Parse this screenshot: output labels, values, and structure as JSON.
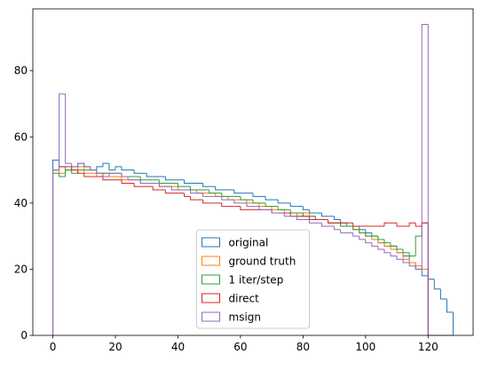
{
  "chart_data": {
    "type": "histogram",
    "histtype": "step",
    "bins": [
      0,
      2,
      4,
      6,
      8,
      10,
      12,
      14,
      16,
      18,
      20,
      22,
      24,
      26,
      28,
      30,
      32,
      34,
      36,
      38,
      40,
      42,
      44,
      46,
      48,
      50,
      52,
      54,
      56,
      58,
      60,
      62,
      64,
      66,
      68,
      70,
      72,
      74,
      76,
      78,
      80,
      82,
      84,
      86,
      88,
      90,
      92,
      94,
      96,
      98,
      100,
      102,
      104,
      106,
      108,
      110,
      112,
      114,
      116,
      118,
      120,
      122,
      124,
      126,
      128
    ],
    "series": [
      {
        "name": "original",
        "color": "#1f77b4",
        "values": [
          53,
          51,
          50,
          51,
          52,
          51,
          50,
          51,
          52,
          50,
          51,
          50,
          50,
          49,
          49,
          48,
          48,
          48,
          47,
          47,
          47,
          46,
          46,
          46,
          45,
          45,
          44,
          44,
          44,
          43,
          43,
          43,
          42,
          42,
          41,
          41,
          40,
          40,
          39,
          39,
          38,
          37,
          37,
          36,
          36,
          35,
          34,
          33,
          33,
          32,
          31,
          30,
          28,
          27,
          27,
          25,
          24,
          22,
          20,
          18,
          17,
          14,
          11,
          7
        ]
      },
      {
        "name": "ground truth",
        "color": "#ff7f0e",
        "values": [
          50,
          49,
          50,
          50,
          51,
          49,
          49,
          48,
          49,
          48,
          48,
          47,
          47,
          47,
          46,
          46,
          46,
          45,
          45,
          45,
          44,
          44,
          44,
          43,
          43,
          43,
          42,
          42,
          41,
          41,
          41,
          40,
          40,
          39,
          39,
          38,
          38,
          37,
          37,
          36,
          37,
          36,
          35,
          35,
          34,
          34,
          33,
          33,
          32,
          31,
          30,
          29,
          28,
          27,
          26,
          25,
          23,
          22,
          21,
          20,
          0,
          0,
          0,
          0
        ]
      },
      {
        "name": "1 iter/step",
        "color": "#2ca02c",
        "values": [
          49,
          48,
          50,
          49,
          50,
          50,
          50,
          49,
          49,
          49,
          49,
          48,
          48,
          48,
          47,
          47,
          47,
          46,
          46,
          46,
          45,
          45,
          44,
          44,
          44,
          43,
          43,
          42,
          42,
          42,
          41,
          41,
          40,
          40,
          39,
          39,
          38,
          38,
          37,
          37,
          36,
          36,
          35,
          35,
          34,
          34,
          33,
          33,
          32,
          31,
          30,
          30,
          29,
          28,
          27,
          26,
          25,
          24,
          30,
          34,
          0,
          0,
          0,
          0
        ]
      },
      {
        "name": "direct",
        "color": "#d62728",
        "values": [
          50,
          51,
          51,
          50,
          49,
          48,
          48,
          48,
          47,
          47,
          47,
          46,
          46,
          45,
          45,
          45,
          44,
          44,
          43,
          43,
          43,
          42,
          41,
          41,
          40,
          40,
          40,
          39,
          39,
          39,
          38,
          38,
          38,
          38,
          38,
          37,
          37,
          37,
          36,
          36,
          36,
          35,
          35,
          35,
          34,
          34,
          34,
          34,
          33,
          33,
          33,
          33,
          33,
          34,
          34,
          33,
          33,
          34,
          33,
          34,
          0,
          0,
          0,
          0
        ]
      },
      {
        "name": "msign",
        "color": "#9467bd",
        "values": [
          50,
          73,
          52,
          51,
          52,
          51,
          50,
          49,
          48,
          49,
          49,
          48,
          47,
          47,
          46,
          46,
          46,
          45,
          45,
          44,
          44,
          44,
          43,
          43,
          42,
          42,
          42,
          41,
          41,
          40,
          40,
          39,
          39,
          38,
          38,
          37,
          37,
          36,
          36,
          35,
          35,
          34,
          34,
          33,
          33,
          32,
          31,
          31,
          30,
          29,
          28,
          27,
          26,
          25,
          24,
          23,
          22,
          21,
          20,
          94,
          0,
          0,
          0,
          0
        ]
      }
    ],
    "xlim": [
      -6.4,
      134.4
    ],
    "ylim": [
      0,
      98.7
    ],
    "xticks": [
      0,
      20,
      40,
      60,
      80,
      100,
      120
    ],
    "yticks": [
      0,
      20,
      40,
      60,
      80
    ],
    "legend": "lower center"
  }
}
